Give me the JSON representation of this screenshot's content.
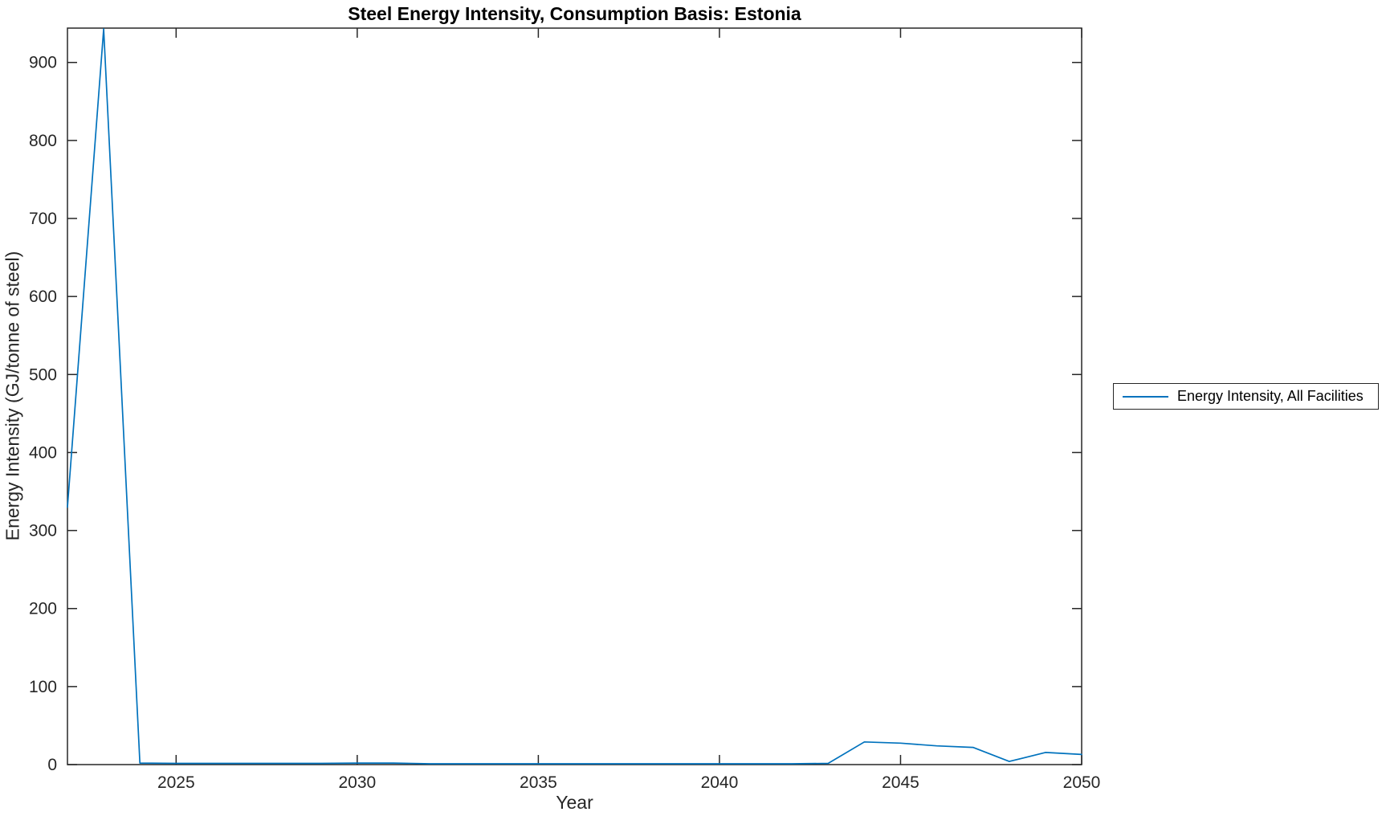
{
  "title": "Steel Energy Intensity, Consumption Basis: Estonia",
  "colors": {
    "line": "#0072BD",
    "axis": "#262626",
    "title_text": "#000000",
    "background": "#ffffff"
  },
  "chart_data": {
    "type": "line",
    "title": "Steel Energy Intensity, Consumption Basis: Estonia",
    "xlabel": "Year",
    "ylabel": "Energy Intensity (GJ/tonne of steel)",
    "xlim": [
      2022,
      2050
    ],
    "ylim": [
      0,
      944
    ],
    "xticks": [
      2025,
      2030,
      2035,
      2040,
      2045,
      2050
    ],
    "yticks": [
      0,
      100,
      200,
      300,
      400,
      500,
      600,
      700,
      800,
      900
    ],
    "grid": false,
    "legend_position": "outside-right",
    "legend": [
      "Energy Intensity, All Facilities"
    ],
    "series": [
      {
        "name": "Energy Intensity, All Facilities",
        "color": "#0072BD",
        "x": [
          2022,
          2023,
          2024,
          2025,
          2026,
          2027,
          2028,
          2029,
          2030,
          2031,
          2032,
          2033,
          2034,
          2035,
          2036,
          2037,
          2038,
          2039,
          2040,
          2041,
          2042,
          2043,
          2044,
          2045,
          2046,
          2047,
          2048,
          2049,
          2050
        ],
        "y": [
          330,
          943,
          2,
          1.5,
          1.5,
          1.5,
          1.5,
          1.5,
          2,
          2,
          1,
          1,
          1,
          1,
          1,
          1,
          1,
          1,
          1,
          1,
          1,
          1.5,
          29,
          27.5,
          24,
          22,
          4,
          15.5,
          13
        ]
      }
    ]
  }
}
